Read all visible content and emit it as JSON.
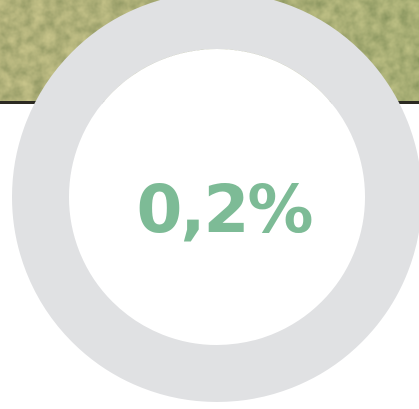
{
  "ring": {
    "label": "0,2%"
  }
}
